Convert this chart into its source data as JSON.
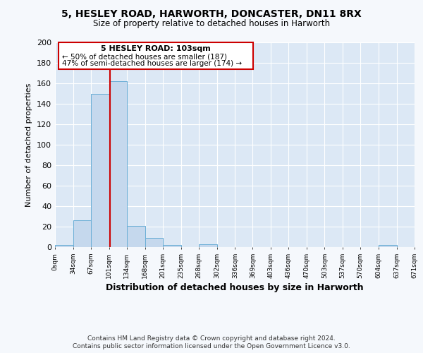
{
  "title_line1": "5, HESLEY ROAD, HARWORTH, DONCASTER, DN11 8RX",
  "title_line2": "Size of property relative to detached houses in Harworth",
  "xlabel": "Distribution of detached houses by size in Harworth",
  "ylabel": "Number of detached properties",
  "bar_values": [
    2,
    26,
    150,
    162,
    21,
    9,
    2,
    0,
    3,
    0,
    0,
    0,
    0,
    0,
    0,
    0,
    0,
    0,
    2
  ],
  "bin_edges": [
    0,
    34,
    67,
    101,
    134,
    168,
    201,
    235,
    268,
    302,
    336,
    369,
    403,
    436,
    470,
    503,
    537,
    570,
    604,
    638
  ],
  "tick_labels": [
    "0sqm",
    "34sqm",
    "67sqm",
    "101sqm",
    "134sqm",
    "168sqm",
    "201sqm",
    "235sqm",
    "268sqm",
    "302sqm",
    "336sqm",
    "369sqm",
    "403sqm",
    "436sqm",
    "470sqm",
    "503sqm",
    "537sqm",
    "570sqm",
    "604sqm",
    "637sqm",
    "671sqm"
  ],
  "bar_color": "#c5d8ed",
  "bar_edge_color": "#6aaed6",
  "bg_color": "#dce8f5",
  "grid_color": "#d0dce8",
  "fig_bg_color": "#f5f8fc",
  "red_line_x": 103,
  "annotation_box_title": "5 HESLEY ROAD: 103sqm",
  "annotation_line1": "← 50% of detached houses are smaller (187)",
  "annotation_line2": "47% of semi-detached houses are larger (174) →",
  "annotation_box_edge_color": "#cc0000",
  "ylim": [
    0,
    200
  ],
  "yticks": [
    0,
    20,
    40,
    60,
    80,
    100,
    120,
    140,
    160,
    180,
    200
  ],
  "footer_line1": "Contains HM Land Registry data © Crown copyright and database right 2024.",
  "footer_line2": "Contains public sector information licensed under the Open Government Licence v3.0."
}
